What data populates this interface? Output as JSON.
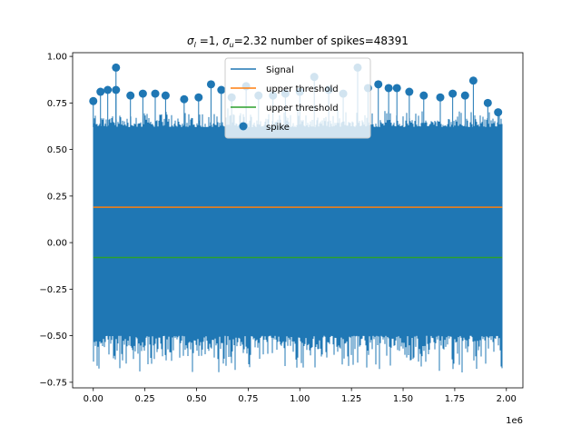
{
  "chart_data": {
    "type": "line",
    "title": {
      "sigma_l_prefix": "σ",
      "sigma_l_sub": "l",
      "sigma_l_value": " =1, ",
      "sigma_u_prefix": "σ",
      "sigma_u_sub": "u",
      "sigma_u_value": "=2.32 number of spikes=48391"
    },
    "xlabel": "",
    "ylabel": "",
    "x_offset_label": "1e6",
    "xlim": [
      -0.1,
      2.08
    ],
    "ylim": [
      -0.78,
      1.02
    ],
    "x_ticks": [
      0.0,
      0.25,
      0.5,
      0.75,
      1.0,
      1.25,
      1.5,
      1.75,
      2.0
    ],
    "x_tick_labels": [
      "0.00",
      "0.25",
      "0.50",
      "0.75",
      "1.00",
      "1.25",
      "1.50",
      "1.75",
      "2.00"
    ],
    "y_ticks": [
      -0.75,
      -0.5,
      -0.25,
      0.0,
      0.25,
      0.5,
      0.75,
      1.0
    ],
    "y_tick_labels": [
      "−0.75",
      "−0.50",
      "−0.25",
      "0.00",
      "0.25",
      "0.50",
      "0.75",
      "1.00"
    ],
    "legend_position": "top-center",
    "series": [
      {
        "name": "Signal",
        "kind": "signal-band",
        "color": "#1f77b4",
        "x_range": [
          0.0,
          1.98
        ],
        "core_range": [
          -0.5,
          0.62
        ],
        "extreme_range": [
          -0.71,
          0.72
        ]
      },
      {
        "name": "upper threshold",
        "kind": "hline",
        "color": "#ff7f0e",
        "x_range": [
          0.0,
          1.98
        ],
        "y": 0.19
      },
      {
        "name": "upper threshold",
        "kind": "hline",
        "color": "#2ca02c",
        "x_range": [
          0.0,
          1.98
        ],
        "y": -0.08
      },
      {
        "name": "spike",
        "kind": "scatter",
        "color": "#1f77b4",
        "points": [
          [
            0.0,
            0.76
          ],
          [
            0.035,
            0.81
          ],
          [
            0.07,
            0.82
          ],
          [
            0.11,
            0.94
          ],
          [
            0.11,
            0.82
          ],
          [
            0.18,
            0.79
          ],
          [
            0.24,
            0.8
          ],
          [
            0.3,
            0.8
          ],
          [
            0.35,
            0.79
          ],
          [
            0.44,
            0.77
          ],
          [
            0.51,
            0.78
          ],
          [
            0.57,
            0.85
          ],
          [
            0.62,
            0.82
          ],
          [
            0.67,
            0.78
          ],
          [
            0.74,
            0.84
          ],
          [
            0.8,
            0.79
          ],
          [
            0.87,
            0.79
          ],
          [
            0.93,
            0.8
          ],
          [
            1.0,
            0.81
          ],
          [
            1.07,
            0.89
          ],
          [
            1.14,
            0.82
          ],
          [
            1.21,
            0.8
          ],
          [
            1.28,
            0.94
          ],
          [
            1.33,
            0.83
          ],
          [
            1.38,
            0.85
          ],
          [
            1.43,
            0.83
          ],
          [
            1.47,
            0.83
          ],
          [
            1.53,
            0.81
          ],
          [
            1.6,
            0.79
          ],
          [
            1.68,
            0.78
          ],
          [
            1.74,
            0.8
          ],
          [
            1.8,
            0.79
          ],
          [
            1.84,
            0.87
          ],
          [
            1.91,
            0.75
          ],
          [
            1.96,
            0.7
          ]
        ]
      }
    ]
  }
}
